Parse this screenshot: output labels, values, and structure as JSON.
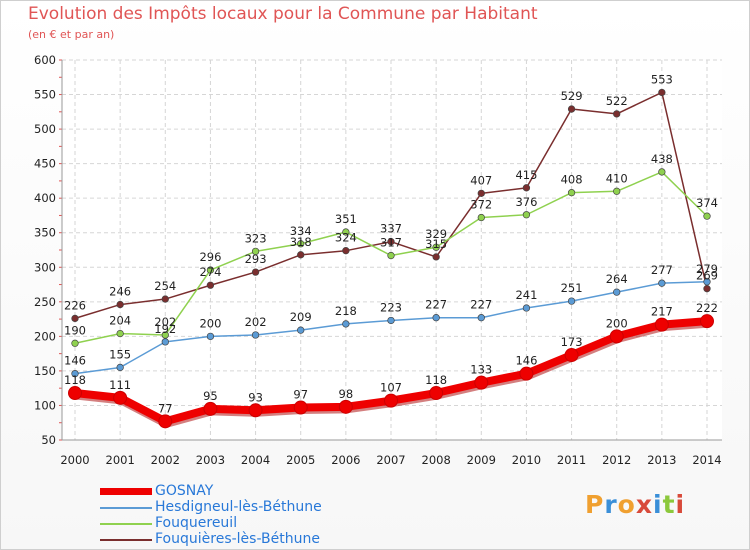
{
  "title": "Evolution des Impôts locaux pour la Commune par Habitant",
  "subtitle": "(en € et par an)",
  "logo": {
    "text": "Proxiti",
    "colors": [
      "#f0a030",
      "#3a8fd8",
      "#f0a030",
      "#d84a3a",
      "#3a8fd8",
      "#8cc83c",
      "#d84a3a"
    ]
  },
  "chart_data": {
    "type": "line",
    "x": [
      "2000",
      "2001",
      "2002",
      "2003",
      "2004",
      "2005",
      "2006",
      "2007",
      "2008",
      "2009",
      "2010",
      "2011",
      "2012",
      "2013",
      "2014"
    ],
    "ylim": [
      50,
      600
    ],
    "yticks": [
      50,
      100,
      150,
      200,
      250,
      300,
      350,
      400,
      450,
      500,
      550,
      600
    ],
    "grid": true,
    "legend_position": "bottom-left",
    "series": [
      {
        "name": "GOSNAY",
        "color": "#ee0000",
        "values": [
          118,
          111,
          77,
          95,
          93,
          97,
          98,
          107,
          118,
          133,
          146,
          173,
          200,
          217,
          222
        ]
      },
      {
        "name": "Hesdigneul-lès-Béthune",
        "color": "#5b9bd5",
        "values": [
          146,
          155,
          192,
          200,
          202,
          209,
          218,
          223,
          227,
          227,
          241,
          251,
          264,
          277,
          279
        ]
      },
      {
        "name": "Fouquereuil",
        "color": "#8fd14f",
        "values": [
          190,
          204,
          202,
          296,
          323,
          334,
          351,
          317,
          329,
          372,
          376,
          408,
          410,
          438,
          374
        ]
      },
      {
        "name": "Fouquières-lès-Béthune",
        "color": "#7a2e2e",
        "values": [
          226,
          246,
          254,
          274,
          293,
          318,
          324,
          337,
          315,
          407,
          415,
          529,
          522,
          553,
          269
        ]
      }
    ]
  }
}
